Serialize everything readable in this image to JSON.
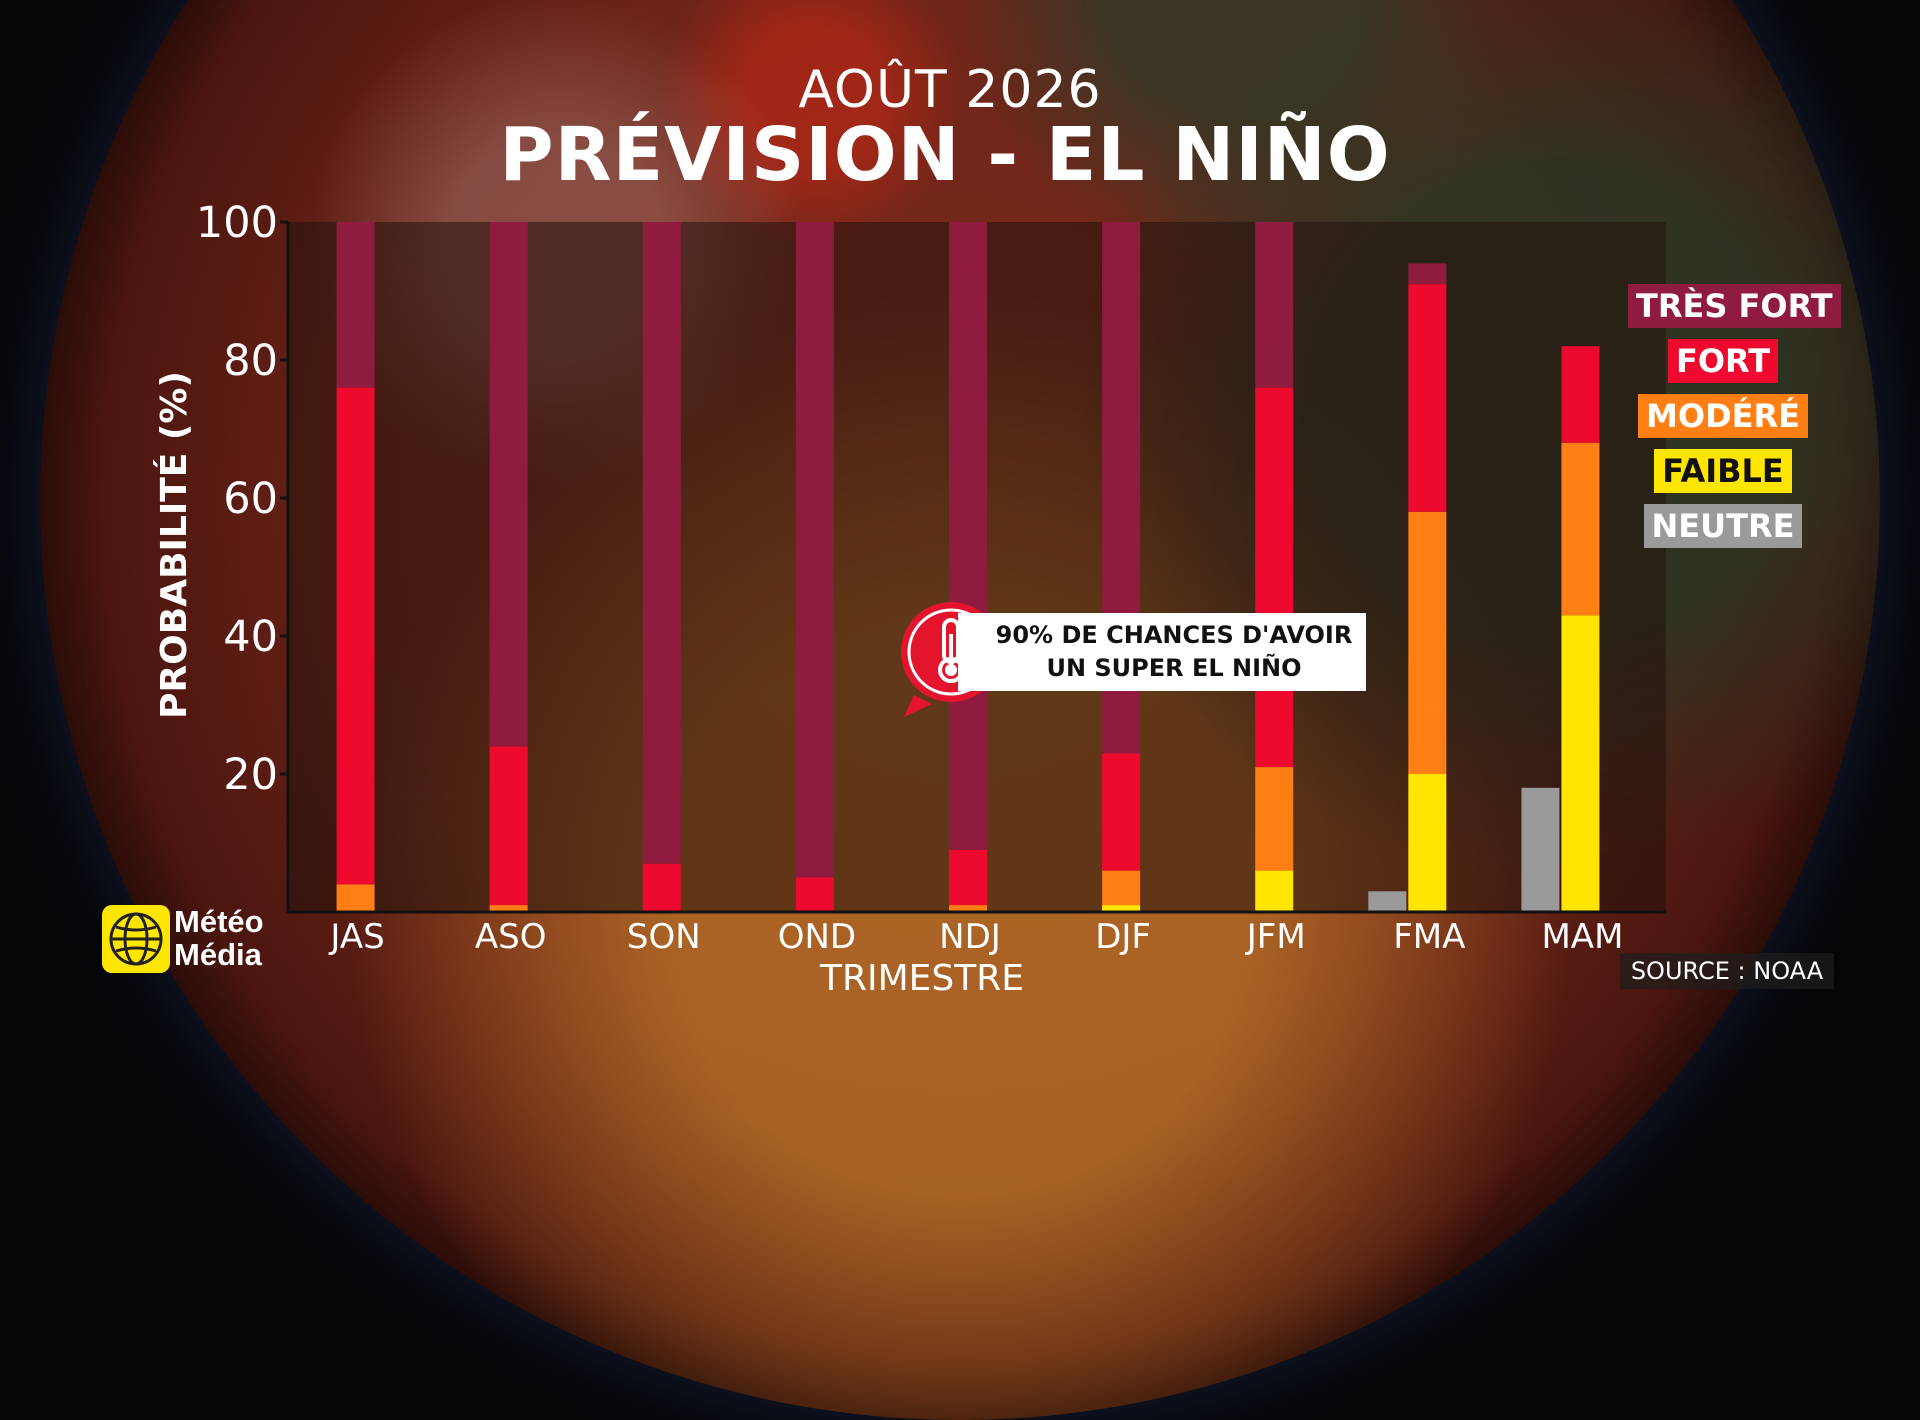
{
  "header": {
    "subtitle": "AOÛT 2026",
    "title": "PRÉVISION - EL NIÑO"
  },
  "chart_data": {
    "type": "bar",
    "stacked": true,
    "title": "PRÉVISION - EL NIÑO",
    "subtitle": "AOÛT 2026",
    "xlabel": "TRIMESTRE",
    "ylabel": "PROBABILITÉ (%)",
    "ylim": [
      0,
      100
    ],
    "yticks": [
      20,
      40,
      60,
      80,
      100
    ],
    "grid": false,
    "legend_position": "right",
    "categories": [
      "JAS",
      "ASO",
      "SON",
      "OND",
      "NDJ",
      "DJF",
      "JFM",
      "FMA",
      "MAM"
    ],
    "series": [
      {
        "name": "NEUTRE",
        "color": "#9a9a9a",
        "values": [
          0,
          0,
          0,
          0,
          0,
          0,
          0,
          3,
          18
        ]
      },
      {
        "name": "FAIBLE",
        "color": "#ffe500",
        "values": [
          0,
          0,
          0,
          0,
          0,
          1,
          6,
          20,
          43
        ]
      },
      {
        "name": "MODÉRÉ",
        "color": "#ff7f14",
        "values": [
          4,
          1,
          0,
          0,
          1,
          5,
          15,
          38,
          25
        ]
      },
      {
        "name": "FORT",
        "color": "#ee0a2e",
        "values": [
          72,
          23,
          7,
          5,
          8,
          17,
          55,
          33,
          14
        ]
      },
      {
        "name": "TRÈS FORT",
        "color": "#8f1c3e",
        "values": [
          24,
          76,
          93,
          95,
          91,
          77,
          24,
          3,
          0
        ]
      }
    ]
  },
  "legend": {
    "items": [
      {
        "label": "TRÈS FORT",
        "color": "#8f1c3e"
      },
      {
        "label": "FORT",
        "color": "#ee0a2e"
      },
      {
        "label": "MODÉRÉ",
        "color": "#ff7f14"
      },
      {
        "label": "FAIBLE",
        "color": "#ffe500",
        "text_color": "#111111"
      },
      {
        "label": "NEUTRE",
        "color": "#9a9a9a"
      }
    ]
  },
  "callout": {
    "line1": "90% DE CHANCES D'AVOIR",
    "line2": "UN SUPER EL NIÑO",
    "icon": "thermometer-icon",
    "color": "#e3142c"
  },
  "brand": {
    "line1": "Météo",
    "line2": "Média",
    "color": "#ffe600"
  },
  "source": "SOURCE : NOAA"
}
